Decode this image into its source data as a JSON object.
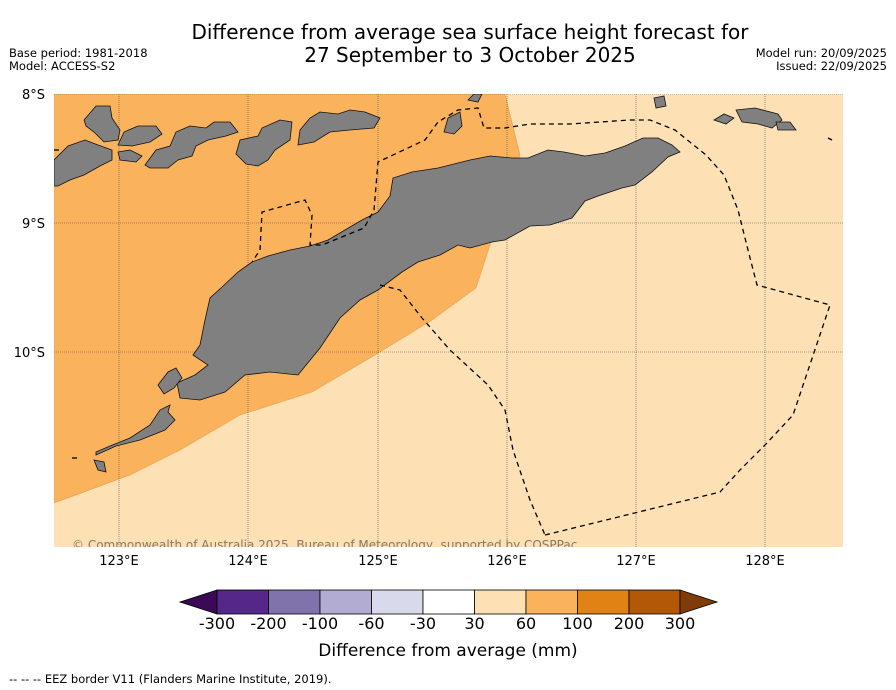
{
  "title": {
    "line1": "Difference from average sea surface height forecast for",
    "line2": "27 September to 3 October 2025"
  },
  "meta_left": {
    "base_period": "Base period: 1981-2018",
    "model": "Model: ACCESS-S2"
  },
  "meta_right": {
    "model_run": "Model run: 20/09/2025",
    "issued": "Issued: 22/09/2025"
  },
  "map": {
    "lat_labels": [
      "8°S",
      "9°S",
      "10°S"
    ],
    "lon_labels": [
      "123°E",
      "124°E",
      "125°E",
      "126°E",
      "127°E",
      "128°E"
    ],
    "copyright": "© Commonwealth of Australia 2025, Bureau of Meteorology, supported by COSPPac",
    "land_color": "#808080",
    "band_colors": {
      "30_to_60": "#fde0b4",
      "60_to_100": "#fbb25c"
    }
  },
  "colorbar": {
    "title": "Difference from average (mm)",
    "tick_labels": [
      "-300",
      "-200",
      "-100",
      "-60",
      "-30",
      "30",
      "60",
      "100",
      "200",
      "300"
    ],
    "colors": [
      "#3a0a55",
      "#542788",
      "#8073ac",
      "#b2abd2",
      "#d8daeb",
      "#ffffff",
      "#fde0b4",
      "#fbb25c",
      "#e08214",
      "#b35806",
      "#7f3b08"
    ]
  },
  "footnote": "--  --  -- EEZ border V11 (Flanders Marine Institute, 2019)."
}
